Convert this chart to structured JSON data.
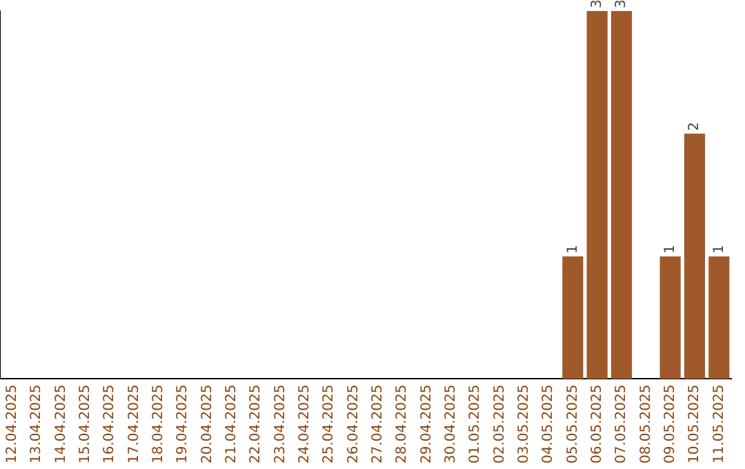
{
  "chart_data": {
    "type": "bar",
    "categories": [
      "12.04.2025",
      "13.04.2025",
      "14.04.2025",
      "15.04.2025",
      "16.04.2025",
      "17.04.2025",
      "18.04.2025",
      "19.04.2025",
      "20.04.2025",
      "21.04.2025",
      "22.04.2025",
      "23.04.2025",
      "24.04.2025",
      "25.04.2025",
      "26.04.2025",
      "27.04.2025",
      "28.04.2025",
      "29.04.2025",
      "30.04.2025",
      "01.05.2025",
      "02.05.2025",
      "03.05.2025",
      "04.05.2025",
      "05.05.2025",
      "06.05.2025",
      "07.05.2025",
      "08.05.2025",
      "09.05.2025",
      "10.05.2025",
      "11.05.2025"
    ],
    "values": [
      null,
      null,
      null,
      null,
      null,
      null,
      null,
      null,
      null,
      null,
      null,
      null,
      null,
      null,
      null,
      null,
      null,
      null,
      null,
      null,
      null,
      null,
      null,
      1,
      3,
      3,
      null,
      1,
      2,
      1
    ],
    "data_labels": true,
    "color": "#a0592b",
    "tick_labels": "x",
    "grid": false,
    "legend": false
  }
}
